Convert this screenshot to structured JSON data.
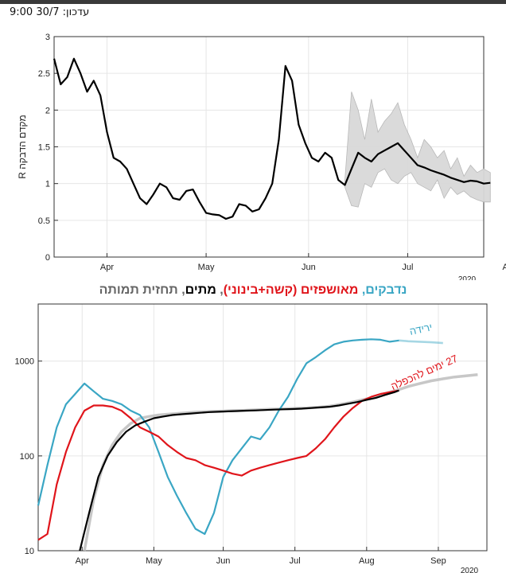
{
  "header": {
    "update_text": "עדכון: 30/7 9:00"
  },
  "colors": {
    "cases": "#3aa6c4",
    "hospitalized": "#e0151b",
    "deaths": "#000000",
    "forecast": "#bdbdbd",
    "title_gray": "#666666",
    "band": "#d9d9d9"
  },
  "chart_data": [
    {
      "type": "line",
      "ylabel": "מקדם הדבקה R",
      "ylim": [
        0,
        3
      ],
      "yticks": [
        "0",
        "0.5",
        "1",
        "1.5",
        "2",
        "2.5",
        "3"
      ],
      "xticks": [
        "Apr",
        "May",
        "Jun",
        "Jul",
        "Aug"
      ],
      "x_label_partial": "2020",
      "series": [
        {
          "name": "R",
          "x": [
            0,
            2,
            4,
            6,
            8,
            10,
            12,
            14,
            16,
            18,
            20,
            22,
            24,
            26,
            28,
            30,
            32,
            34,
            36,
            38,
            40,
            42,
            44,
            46,
            48,
            50,
            52,
            54,
            56,
            58,
            60,
            62,
            64,
            66,
            68,
            70,
            72,
            74,
            76,
            78,
            80,
            82,
            84,
            86,
            88,
            90,
            92,
            94,
            96,
            98,
            100,
            102,
            104,
            106,
            108,
            110,
            112,
            114,
            116,
            118,
            120,
            122,
            124,
            126,
            128,
            130,
            132
          ],
          "values": [
            2.7,
            2.35,
            2.45,
            2.7,
            2.5,
            2.25,
            2.4,
            2.2,
            1.7,
            1.35,
            1.3,
            1.2,
            1.0,
            0.8,
            0.72,
            0.85,
            1.0,
            0.95,
            0.8,
            0.78,
            0.9,
            0.92,
            0.75,
            0.6,
            0.58,
            0.57,
            0.52,
            0.55,
            0.72,
            0.7,
            0.62,
            0.65,
            0.8,
            1.0,
            1.6,
            2.6,
            2.4,
            1.8,
            1.55,
            1.35,
            1.3,
            1.42,
            1.35,
            1.05,
            0.98,
            1.2,
            1.42,
            1.35,
            1.3,
            1.4,
            1.45,
            1.5,
            1.55,
            1.45,
            1.35,
            1.25,
            1.22,
            1.18,
            1.15,
            1.12,
            1.08,
            1.05,
            1.02,
            1.04,
            1.03,
            1.0,
            1.01
          ]
        }
      ],
      "band": {
        "x": [
          88,
          90,
          92,
          94,
          96,
          98,
          100,
          102,
          104,
          106,
          108,
          110,
          112,
          114,
          116,
          118,
          120,
          122,
          124,
          126,
          128,
          130,
          132
        ],
        "upper": [
          1.05,
          2.25,
          2.0,
          1.6,
          2.15,
          1.7,
          1.85,
          1.95,
          2.1,
          1.8,
          1.6,
          1.35,
          1.6,
          1.5,
          1.35,
          1.45,
          1.2,
          1.35,
          1.1,
          1.25,
          1.15,
          1.2,
          1.15
        ],
        "lower": [
          0.95,
          0.7,
          0.68,
          1.0,
          0.95,
          1.15,
          1.2,
          1.05,
          1.0,
          1.1,
          1.15,
          1.0,
          0.95,
          0.9,
          1.05,
          0.8,
          0.95,
          0.85,
          0.9,
          0.82,
          0.78,
          0.75,
          0.75
        ]
      }
    },
    {
      "type": "line",
      "title_parts": [
        {
          "text": "נדבקים",
          "color": "#3aa6c4"
        },
        {
          "text": ", ",
          "color": "#3aa6c4"
        },
        {
          "text": "מאושפזים",
          "color": "#e0151b"
        },
        {
          "text": " (קשה+בינוני)",
          "color": "#e0151b"
        },
        {
          "text": ", ",
          "color": "#666666"
        },
        {
          "text": "מתים",
          "color": "#000000"
        },
        {
          "text": ", ",
          "color": "#666666"
        },
        {
          "text": "תחזית תמותה",
          "color": "#666666"
        }
      ],
      "yscale": "log",
      "ylim": [
        10,
        4000
      ],
      "yticks": [
        "10",
        "100",
        "1000"
      ],
      "xticks": [
        "Apr",
        "May",
        "Jun",
        "Jul",
        "Aug",
        "Sep"
      ],
      "x_label_partial": "2020",
      "annotations": [
        {
          "text": "ירידה",
          "color": "#3aa6c4"
        },
        {
          "text": "27 ימים להכפלה",
          "color": "#e0151b"
        }
      ],
      "series": [
        {
          "name": "נדבקים",
          "x": [
            0,
            4,
            8,
            12,
            16,
            20,
            24,
            28,
            32,
            36,
            40,
            44,
            48,
            52,
            56,
            60,
            64,
            68,
            72,
            76,
            80,
            84,
            88,
            92,
            96,
            100,
            104,
            108,
            112,
            116,
            120,
            124,
            128,
            132,
            136,
            140,
            144,
            148,
            152,
            156
          ],
          "values": [
            30,
            80,
            200,
            350,
            450,
            580,
            480,
            400,
            380,
            350,
            300,
            270,
            200,
            110,
            60,
            38,
            25,
            17,
            15,
            25,
            60,
            90,
            120,
            160,
            150,
            200,
            300,
            420,
            650,
            950,
            1100,
            1300,
            1500,
            1600,
            1650,
            1680,
            1700,
            1680,
            1600,
            1650
          ]
        },
        {
          "name": "נדבקים תחזית",
          "x": [
            156,
            160,
            165,
            170,
            175
          ],
          "values": [
            1650,
            1620,
            1600,
            1580,
            1550
          ]
        },
        {
          "name": "מאושפזים",
          "x": [
            0,
            4,
            8,
            12,
            16,
            20,
            24,
            28,
            32,
            36,
            40,
            44,
            48,
            52,
            56,
            60,
            64,
            68,
            72,
            76,
            80,
            84,
            88,
            92,
            96,
            100,
            104,
            108,
            112,
            116,
            120,
            124,
            128,
            132,
            136,
            140,
            144,
            148,
            152,
            156
          ],
          "values": [
            13,
            15,
            50,
            110,
            200,
            300,
            340,
            340,
            330,
            300,
            250,
            200,
            180,
            160,
            130,
            110,
            95,
            90,
            80,
            75,
            70,
            65,
            62,
            70,
            75,
            80,
            85,
            90,
            95,
            100,
            120,
            150,
            200,
            260,
            320,
            380,
            420,
            450,
            470,
            490
          ]
        },
        {
          "name": "מתים",
          "x": [
            18,
            22,
            26,
            30,
            34,
            38,
            42,
            46,
            50,
            54,
            58,
            62,
            66,
            70,
            74,
            78,
            82,
            86,
            90,
            94,
            98,
            102,
            106,
            110,
            114,
            118,
            122,
            126,
            130,
            134,
            138,
            142,
            146,
            150,
            154,
            156
          ],
          "values": [
            10,
            25,
            60,
            100,
            140,
            180,
            210,
            230,
            250,
            260,
            270,
            275,
            280,
            285,
            290,
            292,
            295,
            297,
            300,
            302,
            305,
            308,
            310,
            312,
            315,
            320,
            325,
            330,
            340,
            355,
            370,
            390,
            410,
            440,
            470,
            490
          ]
        },
        {
          "name": "תחזית תמותה",
          "x": [
            20,
            24,
            28,
            32,
            36,
            40,
            44,
            48,
            52,
            56,
            60,
            64,
            68,
            72,
            76,
            80,
            84,
            88,
            92,
            96,
            100,
            104,
            108,
            112,
            116,
            120,
            124,
            128,
            132,
            136,
            140,
            144,
            148,
            152,
            156,
            160,
            165,
            170,
            175,
            180,
            185,
            190
          ],
          "values": [
            10,
            35,
            80,
            130,
            180,
            220,
            250,
            260,
            270,
            275,
            280,
            285,
            290,
            292,
            295,
            297,
            300,
            302,
            305,
            307,
            310,
            312,
            315,
            318,
            320,
            325,
            330,
            340,
            355,
            370,
            390,
            410,
            440,
            470,
            500,
            540,
            580,
            620,
            650,
            680,
            700,
            720
          ]
        }
      ]
    }
  ]
}
